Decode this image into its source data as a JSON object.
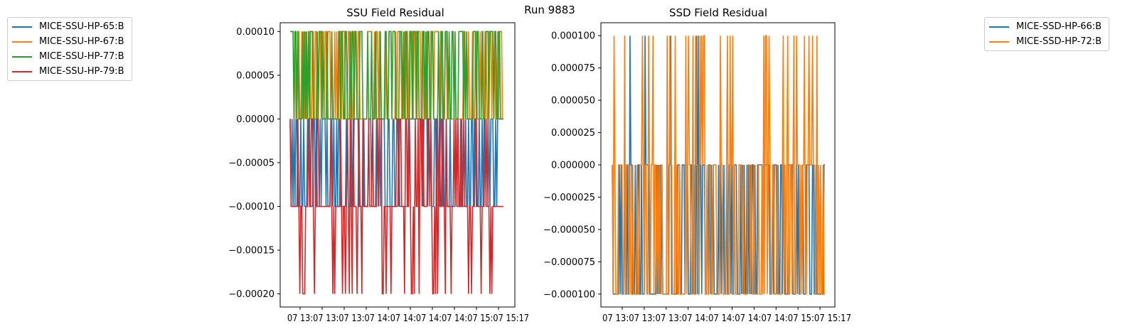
{
  "suptitle": "Run 9883",
  "chart_data": [
    {
      "type": "line",
      "title": "SSU Field Residual",
      "xlabel": "",
      "ylabel": "",
      "ylim": [
        -0.000215,
        0.00011
      ],
      "yticks": [
        "0.00010",
        "0.00005",
        "0.00000",
        "−0.00005",
        "−0.00010",
        "−0.00015",
        "−0.00020"
      ],
      "yticks_values": [
        0.0001,
        5e-05,
        0.0,
        -5e-05,
        -0.0001,
        -0.00015,
        -0.0002
      ],
      "xtick_labels": "07 13:07 13:07 13:07 14:07 14:07 14:07 14:07 15:07 15:17",
      "legend_position": "outside-left",
      "grid": false,
      "series": [
        {
          "name": "MICE-SSU-HP-65:B",
          "color": "#1f77b4",
          "levels": [
            0.0,
            -0.0001
          ],
          "description": "switches between 0 and -1e-4"
        },
        {
          "name": "MICE-SSU-HP-67:B",
          "color": "#ff7f0e",
          "levels": [
            0.0001,
            0.0
          ],
          "description": "switches between 1e-4 and 0"
        },
        {
          "name": "MICE-SSU-HP-77:B",
          "color": "#2ca02c",
          "levels": [
            0.0001,
            0.0
          ],
          "description": "switches between 1e-4 and 0"
        },
        {
          "name": "MICE-SSU-HP-79:B",
          "color": "#d62728",
          "levels": [
            0.0,
            -0.0001,
            -0.0002
          ],
          "description": "switches between 0, -1e-4 and -2e-4"
        }
      ]
    },
    {
      "type": "line",
      "title": "SSD Field Residual",
      "xlabel": "",
      "ylabel": "",
      "ylim": [
        -0.00011,
        0.00011
      ],
      "yticks": [
        "0.000100",
        "0.000075",
        "0.000050",
        "0.000025",
        "0.000000",
        "−0.000025",
        "−0.000050",
        "−0.000075",
        "−0.000100"
      ],
      "yticks_values": [
        0.0001,
        7.5e-05,
        5e-05,
        2.5e-05,
        0.0,
        -2.5e-05,
        -5e-05,
        -7.5e-05,
        -0.0001
      ],
      "xtick_labels": "07 13:07 13:07 13:07 14:07 14:07 14:07 14:07 15:07 15:17",
      "legend_position": "outside-right",
      "grid": false,
      "series": [
        {
          "name": "MICE-SSD-HP-66:B",
          "color": "#1f77b4",
          "levels": [
            0.0,
            -0.0001,
            0.0001
          ]
        },
        {
          "name": "MICE-SSD-HP-72:B",
          "color": "#ff7f0e",
          "levels": [
            0.0,
            -0.0001,
            0.0001
          ]
        }
      ]
    }
  ]
}
